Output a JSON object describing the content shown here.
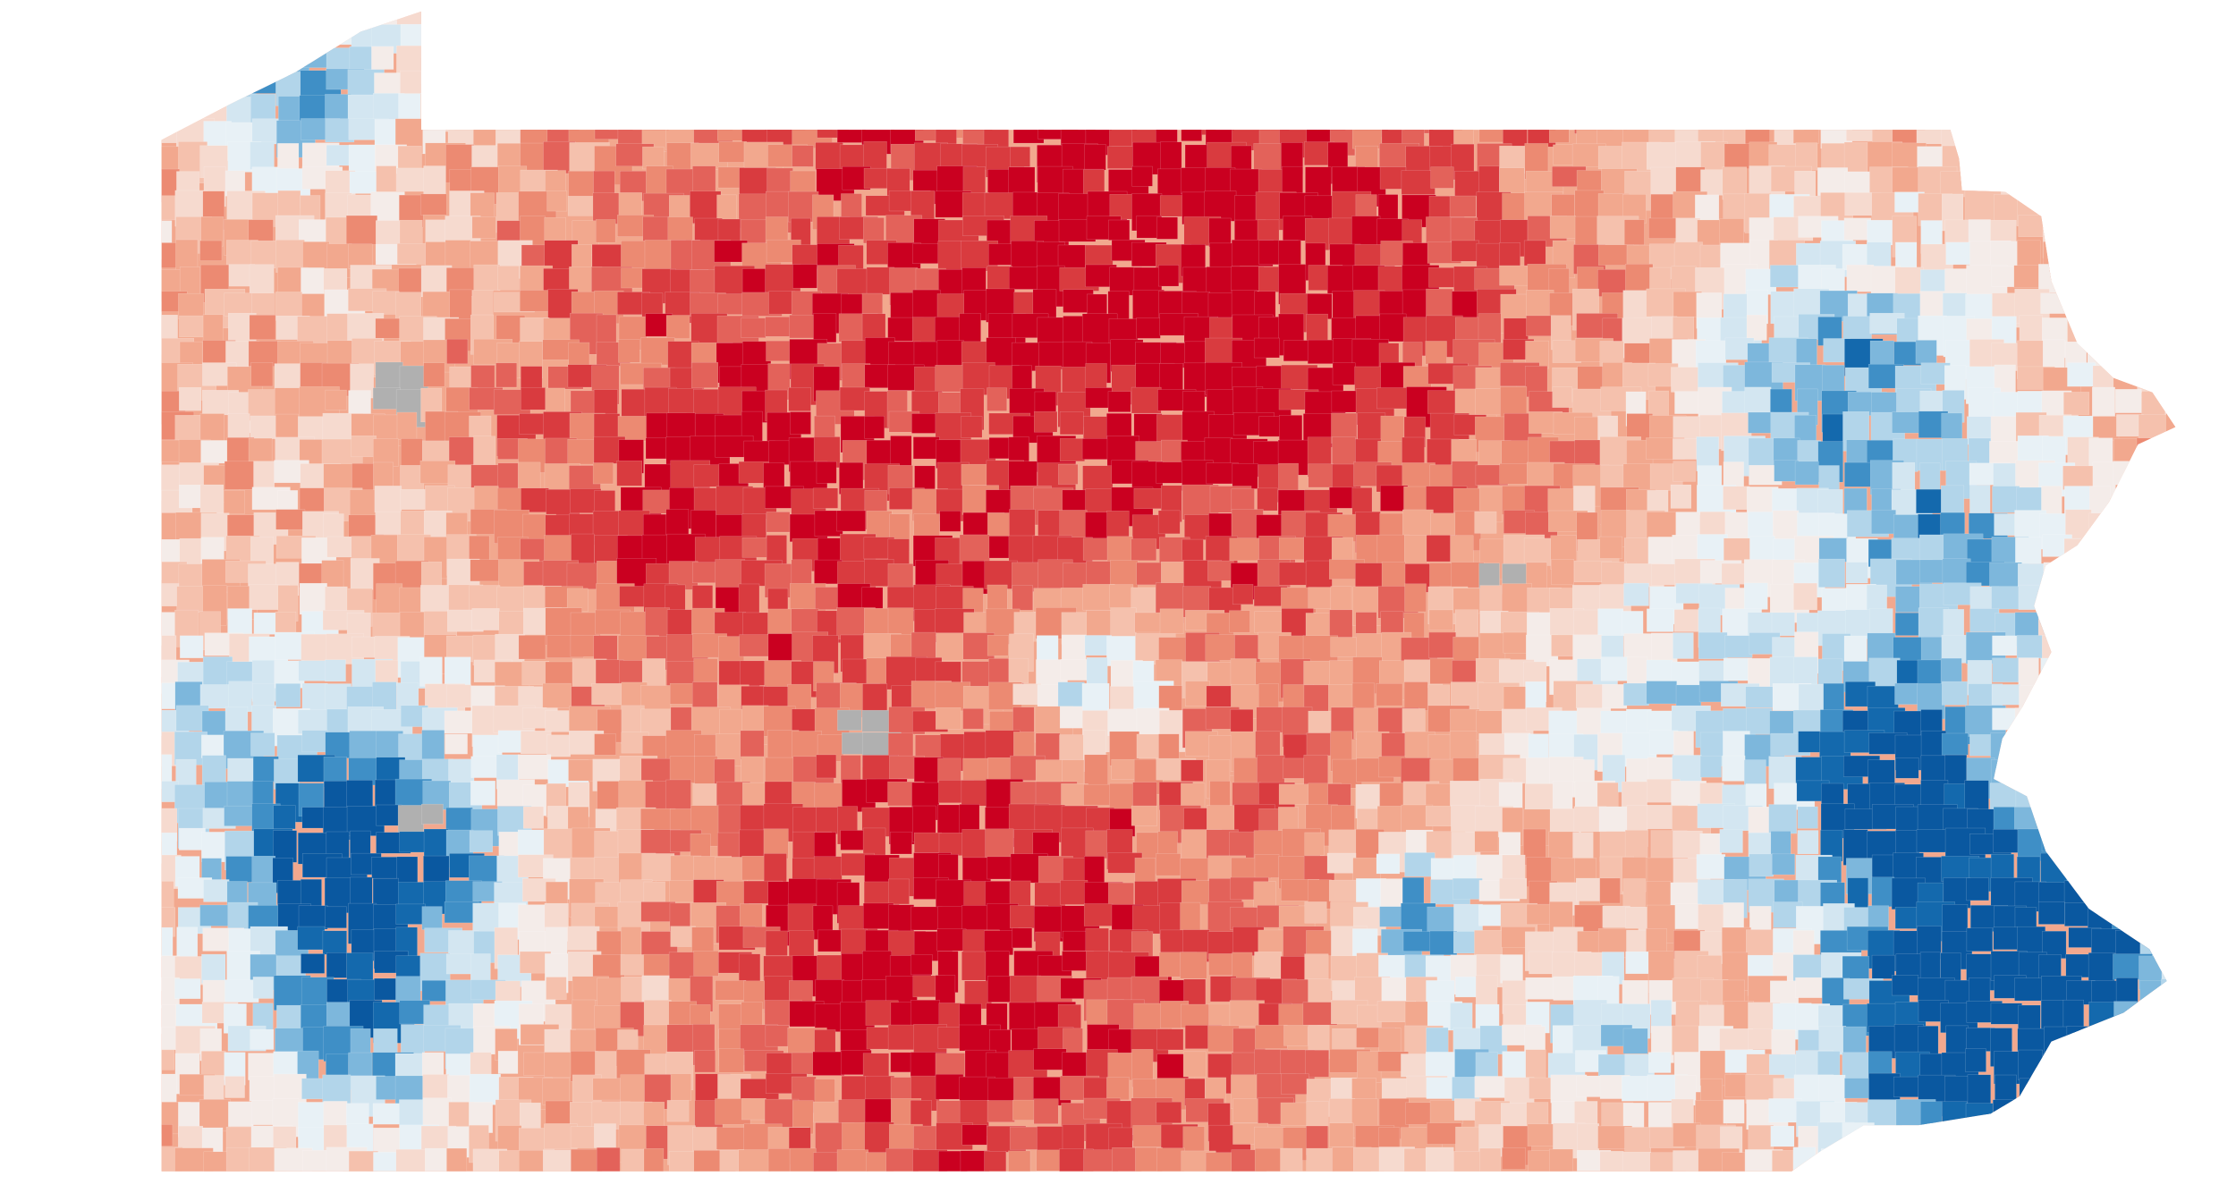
{
  "map": {
    "region": "Pennsylvania",
    "type": "choropleth",
    "color_scale": {
      "strong_red": "#ca0020",
      "reds": [
        "#d93b3f",
        "#e3625a",
        "#ec8a72",
        "#f2a88e",
        "#f5c1ad",
        "#f6dacf",
        "#f4ece9"
      ],
      "blues": [
        "#e8f1f6",
        "#d3e6f1",
        "#b2d5ea",
        "#7db7dc",
        "#3f8fc6",
        "#1469ad",
        "#0a58a0"
      ],
      "no_data": "#b0b0b0",
      "border": "#ffffff"
    }
  }
}
